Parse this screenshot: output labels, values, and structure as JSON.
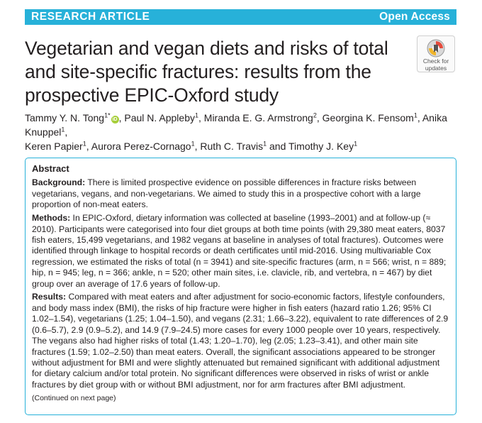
{
  "banner": {
    "left": "RESEARCH ARTICLE",
    "right": "Open Access"
  },
  "title": "Vegetarian and vegan diets and risks of total and site-specific fractures: results from the prospective EPIC-Oxford study",
  "check_updates": {
    "line1": "Check for",
    "line2": "updates",
    "icon": "check-for-updates-icon"
  },
  "authors": [
    {
      "name": "Tammy Y. N. Tong",
      "sup": "1*",
      "orcid": true
    },
    {
      "name": "Paul N. Appleby",
      "sup": "1"
    },
    {
      "name": "Miranda E. G. Armstrong",
      "sup": "2"
    },
    {
      "name": "Georgina K. Fensom",
      "sup": "1"
    },
    {
      "name": "Anika Knuppel",
      "sup": "1"
    },
    {
      "name": "Keren Papier",
      "sup": "1"
    },
    {
      "name": "Aurora Perez-Cornago",
      "sup": "1"
    },
    {
      "name": "Ruth C. Travis",
      "sup": "1"
    },
    {
      "name": "Timothy J. Key",
      "sup": "1"
    }
  ],
  "authors_and": "and",
  "abstract": {
    "heading": "Abstract",
    "background_label": "Background:",
    "background_text": " There is limited prospective evidence on possible differences in fracture risks between vegetarians, vegans, and non-vegetarians. We aimed to study this in a prospective cohort with a large proportion of non-meat eaters.",
    "methods_label": "Methods:",
    "methods_text": " In EPIC-Oxford, dietary information was collected at baseline (1993–2001) and at follow-up (≈ 2010). Participants were categorised into four diet groups at both time points (with 29,380 meat eaters, 8037 fish eaters, 15,499 vegetarians, and 1982 vegans at baseline in analyses of total fractures). Outcomes were identified through linkage to hospital records or death certificates until mid-2016. Using multivariable Cox regression, we estimated the risks of total (n = 3941) and site-specific fractures (arm, n = 566; wrist, n = 889; hip, n = 945; leg, n = 366; ankle, n = 520; other main sites, i.e. clavicle, rib, and vertebra, n = 467) by diet group over an average of 17.6 years of follow-up.",
    "results_label": "Results:",
    "results_text": " Compared with meat eaters and after adjustment for socio-economic factors, lifestyle confounders, and body mass index (BMI), the risks of hip fracture were higher in fish eaters (hazard ratio 1.26; 95% CI 1.02–1.54), vegetarians (1.25; 1.04–1.50), and vegans (2.31; 1.66–3.22), equivalent to rate differences of 2.9 (0.6–5.7), 2.9 (0.9–5.2), and 14.9 (7.9–24.5) more cases for every 1000 people over 10 years, respectively. The vegans also had higher risks of total (1.43; 1.20–1.70), leg (2.05; 1.23–3.41), and other main site fractures (1.59; 1.02–2.50) than meat eaters. Overall, the significant associations appeared to be stronger without adjustment for BMI and were slightly attenuated but remained significant with additional adjustment for dietary calcium and/or total protein. No significant differences were observed in risks of wrist or ankle fractures by diet group with or without BMI adjustment, nor for arm fractures after BMI adjustment.",
    "continued": "(Continued on next page)"
  },
  "colors": {
    "accent": "#27b1d9",
    "orcid": "#a6ce39"
  }
}
